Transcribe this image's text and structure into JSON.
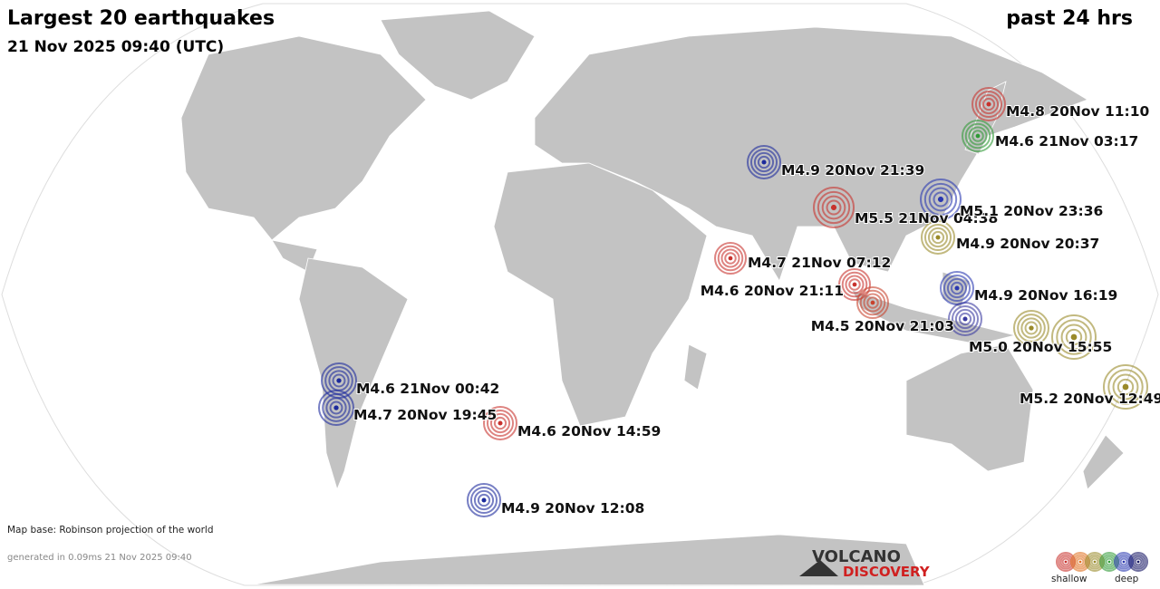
{
  "header": {
    "title": "Largest 20 earthquakes",
    "subtitle": "21 Nov 2025 09:40 (UTC)",
    "period": "past 24 hrs"
  },
  "quakes": [
    {
      "label": "M4.8 20Nov 11:10",
      "color": "#c8322d"
    },
    {
      "label": "M4.6 21Nov 03:17",
      "color": "#2e9a35"
    },
    {
      "label": "M4.9 20Nov 21:39",
      "color": "#1c2a9c"
    },
    {
      "label": "M5.5 21Nov 04:38",
      "color": "#c8322d"
    },
    {
      "label": "M5.1 20Nov 23:36",
      "color": "#2a38b0"
    },
    {
      "label": "M4.9 20Nov 20:37",
      "color": "#9a8a2a"
    },
    {
      "label": "M4.7 21Nov 07:12",
      "color": "#c8322d"
    },
    {
      "label": "M4.6 20Nov 21:11",
      "color": "#c8322d"
    },
    {
      "label": "M4.9 20Nov 16:19",
      "color": "#2a38b0"
    },
    {
      "label": "M4.5 20Nov 21:03",
      "color": "#c8422d"
    },
    {
      "color": "#3a3aa0"
    },
    {
      "color": "#9a8a2a"
    },
    {
      "label": "M5.0 20Nov 15:55",
      "color": "#9a8a2a"
    },
    {
      "label": "M5.2 20Nov 12:49",
      "color": "#9a8a2a"
    },
    {
      "label": "M4.6 21Nov 00:42",
      "color": "#1c2a9c"
    },
    {
      "label": "M4.7 20Nov 19:45",
      "color": "#1c2a9c"
    },
    {
      "label": "M4.6 20Nov 14:59",
      "color": "#c8322d"
    },
    {
      "label": "M4.9 20Nov 12:08",
      "color": "#1c2a9c"
    }
  ],
  "footer": {
    "map_base": "Map base: Robinson projection of the world",
    "generated": "generated in 0.09ms 21 Nov 2025 09:40"
  },
  "logo": {
    "line1": "VOLCANO",
    "line2": "DISCOVERY"
  },
  "legend": {
    "shallow": "shallow",
    "deep": "deep",
    "colors": [
      "#c8322d",
      "#e07020",
      "#9a8a2a",
      "#2e9a35",
      "#2a38b0",
      "#101060"
    ]
  }
}
